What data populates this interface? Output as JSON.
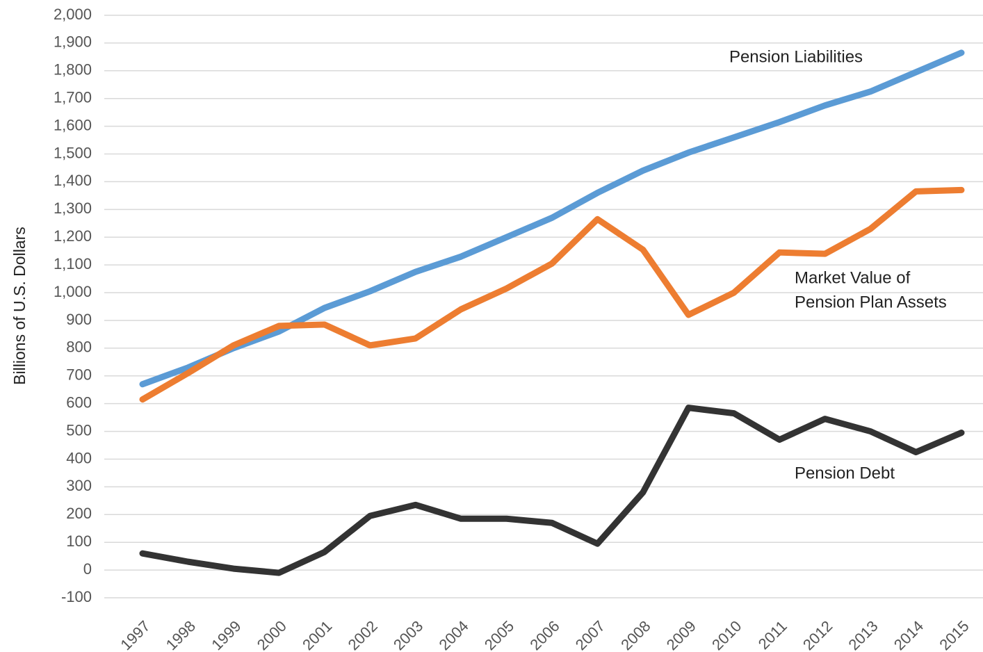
{
  "chart_data": {
    "type": "line",
    "y_label": "Billions of U.S. Dollars",
    "categories": [
      "1997",
      "1998",
      "1999",
      "2000",
      "2001",
      "2002",
      "2003",
      "2004",
      "2005",
      "2006",
      "2007",
      "2008",
      "2009",
      "2010",
      "2011",
      "2012",
      "2013",
      "2014",
      "2015"
    ],
    "series": [
      {
        "name": "Pension Liabilities",
        "color": "#5b9bd5",
        "values": [
          670,
          730,
          800,
          860,
          945,
          1005,
          1075,
          1130,
          1200,
          1270,
          1360,
          1440,
          1505,
          1560,
          1615,
          1675,
          1725,
          1795,
          1865
        ]
      },
      {
        "name": "Market Value of Pension Plan Assets",
        "color": "#ed7d31",
        "values": [
          615,
          710,
          810,
          880,
          885,
          810,
          835,
          940,
          1015,
          1105,
          1265,
          1155,
          920,
          1000,
          1145,
          1140,
          1230,
          1365,
          1370
        ]
      },
      {
        "name": "Pension Debt",
        "color": "#333333",
        "values": [
          60,
          30,
          5,
          -10,
          65,
          195,
          235,
          185,
          185,
          170,
          95,
          280,
          585,
          565,
          470,
          545,
          500,
          425,
          495
        ]
      }
    ],
    "annotations": [
      "Pension Liabilities",
      "Market Value of",
      "Pension Plan Assets",
      "Pension Debt"
    ],
    "ylim": [
      -100,
      2000
    ],
    "yticks": [
      -100,
      0,
      100,
      200,
      300,
      400,
      500,
      600,
      700,
      800,
      900,
      {
        "value": 1000,
        "label": "1,000"
      },
      {
        "value": 1100,
        "label": "1,100"
      },
      {
        "value": 1200,
        "label": "1,200"
      },
      {
        "value": 1300,
        "label": "1,300"
      },
      {
        "value": 1400,
        "label": "1,400"
      },
      {
        "value": 1500,
        "label": "1,500"
      },
      {
        "value": 1600,
        "label": "1,600"
      },
      {
        "value": 1700,
        "label": "1,700"
      },
      {
        "value": 1800,
        "label": "1,800"
      },
      {
        "value": 1900,
        "label": "1,900"
      },
      {
        "value": 2000,
        "label": "2,000"
      }
    ],
    "grid": true
  }
}
